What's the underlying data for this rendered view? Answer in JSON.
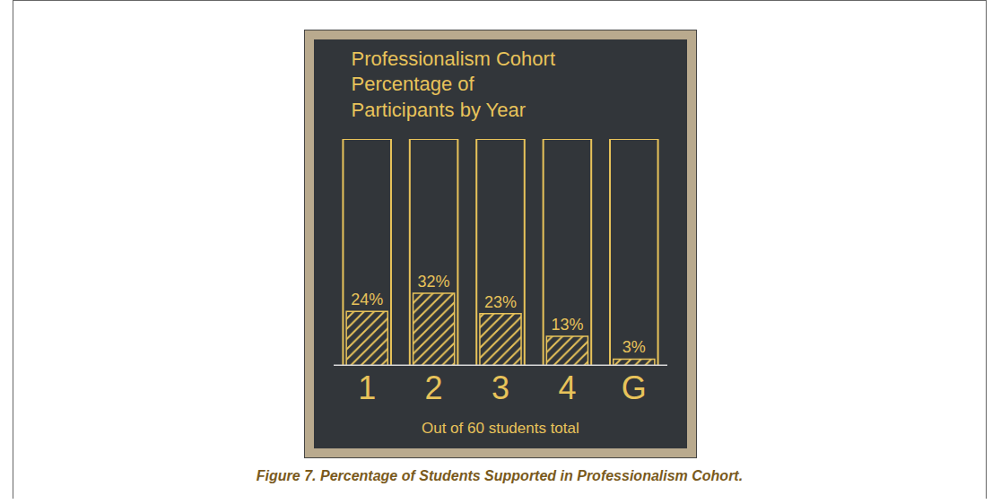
{
  "chart_data": {
    "type": "bar",
    "title": "Professionalism Cohort Percentage of Participants by Year",
    "subtitle": "Out of 60 students total",
    "caption": "Figure 7. Percentage of Students Supported in Professionalism Cohort.",
    "categories": [
      "1",
      "2",
      "3",
      "4",
      "G"
    ],
    "values": [
      24,
      32,
      23,
      13,
      3
    ],
    "value_labels": [
      "24%",
      "32%",
      "23%",
      "13%",
      "3%"
    ],
    "data_labels": true,
    "color": "#e8c35a",
    "ylim": [
      0,
      100
    ],
    "tick_labels": "x",
    "grid": false
  }
}
